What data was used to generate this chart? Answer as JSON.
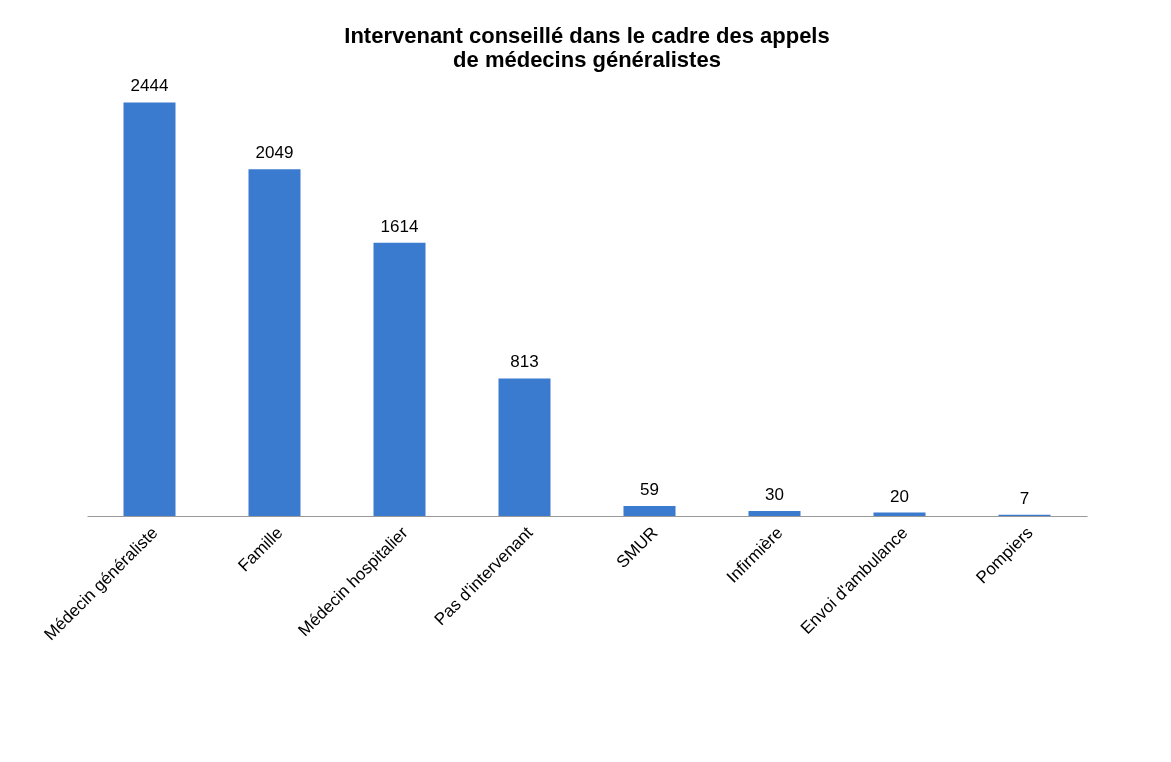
{
  "chart_data": {
    "type": "bar",
    "title": "Intervenant conseillé dans le cadre des appels de médecins généralistes",
    "categories": [
      "Médecin généraliste",
      "Famille",
      "Médecin hospitalier",
      "Pas d'intervenant",
      "SMUR",
      "Infirmière",
      "Envoi d'ambulance",
      "Pompiers"
    ],
    "values": [
      2444,
      2049,
      1614,
      813,
      59,
      30,
      20,
      7
    ],
    "color": "#3a7bd0",
    "data_labels": true
  }
}
